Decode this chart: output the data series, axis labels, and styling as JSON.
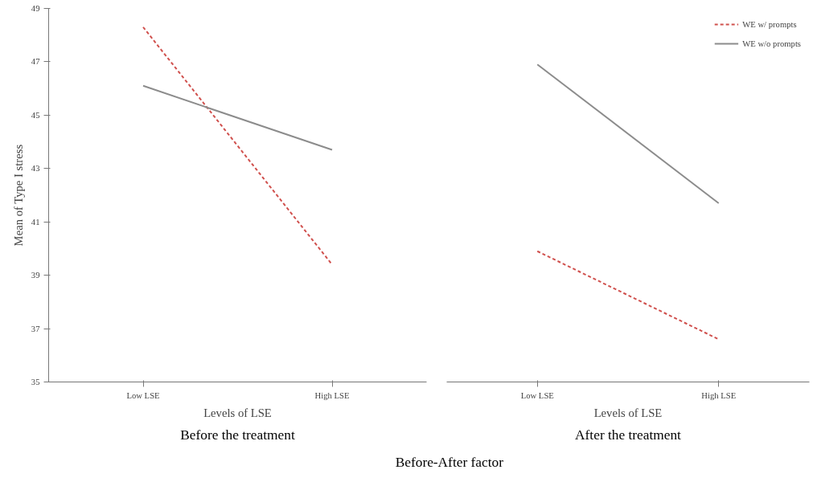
{
  "chart_data": [
    {
      "type": "line",
      "title": "Before the treatment",
      "xlabel": "Levels of LSE",
      "ylabel": "Mean of Type I stress",
      "categories": [
        "Low LSE",
        "High LSE"
      ],
      "ylim": [
        35,
        49
      ],
      "yticks": [
        35,
        37,
        39,
        41,
        43,
        45,
        47,
        49
      ],
      "grid": false,
      "legend": false,
      "marker": "none",
      "series": [
        {
          "color": "#d0504d",
          "line_style": "dashed",
          "values": [
            48.3,
            39.4
          ]
        },
        {
          "color": "#8c8c8c",
          "line_style": "solid",
          "values": [
            46.1,
            43.7
          ]
        }
      ]
    },
    {
      "type": "line",
      "title": "After the treatment",
      "xlabel": "Levels of LSE",
      "categories": [
        "Low LSE",
        "High LSE"
      ],
      "ylim": [
        35,
        49
      ],
      "tick_labels": "x",
      "grid": false,
      "legend": "top right",
      "marker": "none",
      "annotations": [
        "Before-After factor"
      ],
      "series": [
        {
          "name": "WE w/ prompts",
          "color": "#d0504d",
          "line_style": "dashed",
          "values": [
            39.9,
            36.6
          ]
        },
        {
          "name": "WE w/o prompts",
          "color": "#8c8c8c",
          "line_style": "solid",
          "values": [
            46.9,
            41.7
          ]
        }
      ]
    }
  ]
}
